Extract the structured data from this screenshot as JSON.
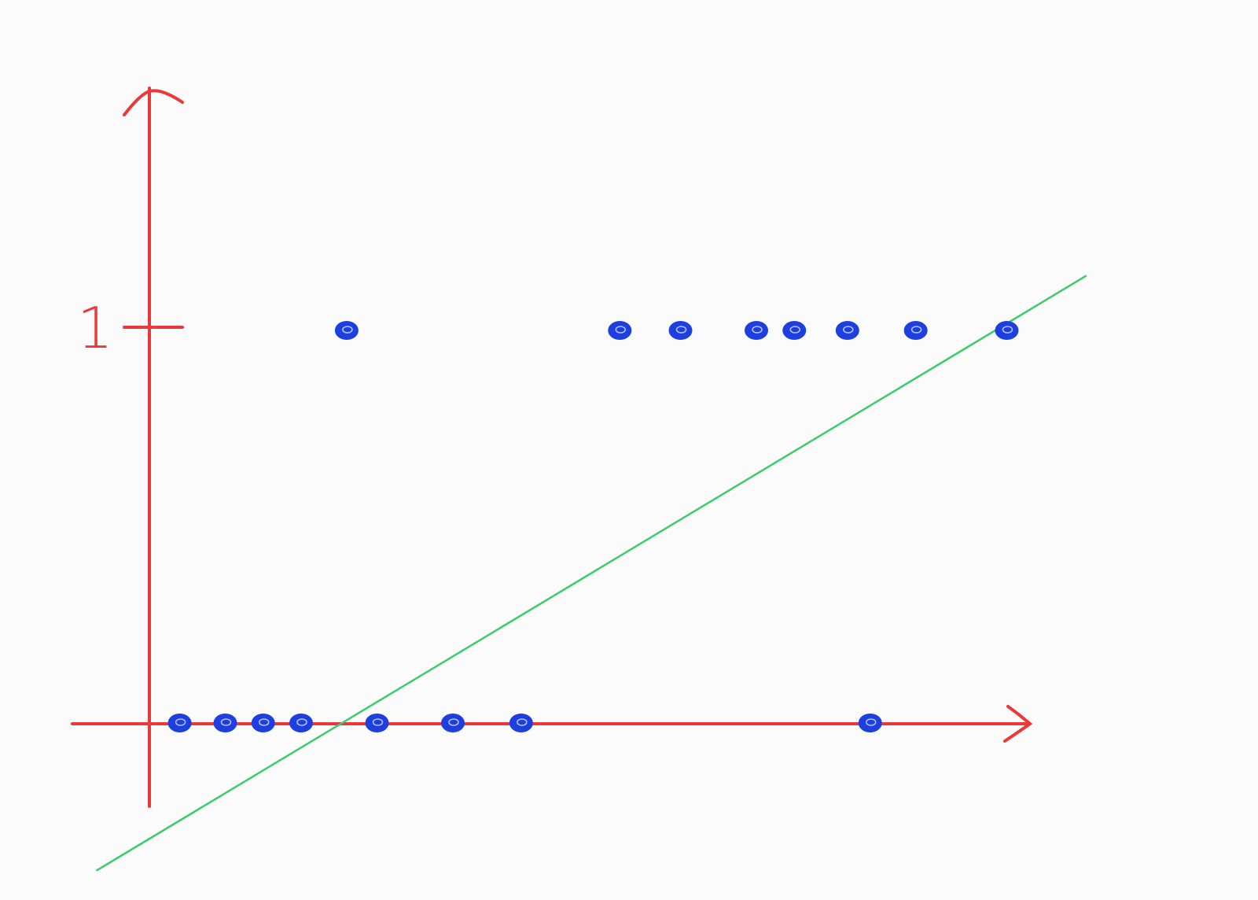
{
  "chart_data": {
    "type": "scatter",
    "title": "",
    "xlabel": "",
    "ylabel": "",
    "ytick_labels": [
      {
        "value": 1,
        "label": "1"
      }
    ],
    "ylim": [
      -0.2,
      1.6
    ],
    "xlim": [
      -0.1,
      1.3
    ],
    "grid": false,
    "points": [
      {
        "x": 0.04,
        "y": 0
      },
      {
        "x": 0.1,
        "y": 0
      },
      {
        "x": 0.15,
        "y": 0
      },
      {
        "x": 0.2,
        "y": 0
      },
      {
        "x": 0.3,
        "y": 0
      },
      {
        "x": 0.4,
        "y": 0
      },
      {
        "x": 0.49,
        "y": 0
      },
      {
        "x": 0.95,
        "y": 0
      },
      {
        "x": 0.26,
        "y": 1
      },
      {
        "x": 0.62,
        "y": 1
      },
      {
        "x": 0.7,
        "y": 1
      },
      {
        "x": 0.8,
        "y": 1
      },
      {
        "x": 0.85,
        "y": 1
      },
      {
        "x": 0.92,
        "y": 1
      },
      {
        "x": 1.01,
        "y": 1
      },
      {
        "x": 1.13,
        "y": 1
      }
    ],
    "fit_line": {
      "slope": 1.15,
      "intercept": -0.29
    },
    "colors": {
      "axes": "#e83a3a",
      "points": "#1e3fe0",
      "line": "#3dcc6a",
      "background": "#fbfbfb"
    }
  }
}
